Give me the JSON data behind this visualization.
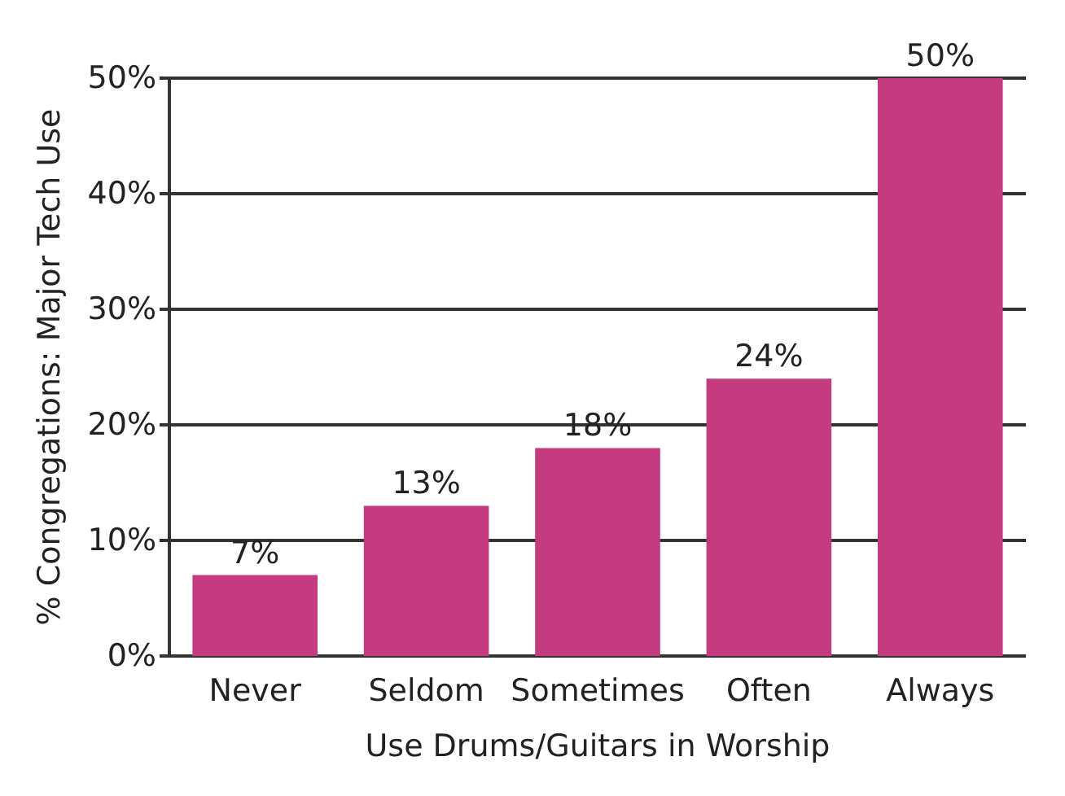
{
  "chart_data": {
    "type": "bar",
    "xlabel": "Use Drums/Guitars in Worship",
    "ylabel": "% Congregations: Major Tech Use",
    "categories": [
      "Never",
      "Seldom",
      "Sometimes",
      "Often",
      "Always"
    ],
    "values": [
      7,
      13,
      18,
      24,
      50
    ],
    "color": "#c43b80",
    "value_labels": [
      "7%",
      "13%",
      "18%",
      "24%",
      "50%"
    ],
    "ylim": [
      0,
      50
    ],
    "yticks": [
      {
        "value": 0,
        "label": "0%"
      },
      {
        "value": 10,
        "label": "10%"
      },
      {
        "value": 20,
        "label": "20%"
      },
      {
        "value": 30,
        "label": "30%"
      },
      {
        "value": 40,
        "label": "40%"
      },
      {
        "value": 50,
        "label": "50%"
      }
    ],
    "grid": "y"
  }
}
